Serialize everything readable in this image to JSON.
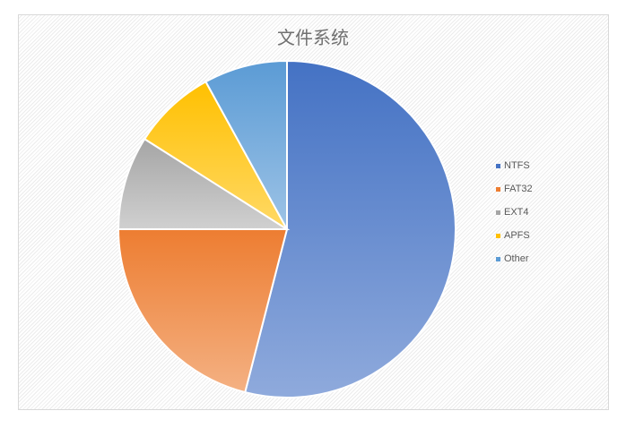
{
  "chart_data": {
    "type": "pie",
    "title": "文件系统",
    "categories": [
      "NTFS",
      "FAT32",
      "EXT4",
      "APFS",
      "Other"
    ],
    "values": [
      54,
      21,
      9,
      8,
      8
    ],
    "colors": [
      "#4472c4",
      "#ed7d31",
      "#a5a5a5",
      "#ffc000",
      "#5b9bd5"
    ],
    "colors_light": [
      "#8faadc",
      "#f4b183",
      "#d0d0d0",
      "#ffd966",
      "#9dc3e6"
    ],
    "start_angle": "12 o'clock",
    "direction": "clockwise",
    "legend_position": "right"
  }
}
